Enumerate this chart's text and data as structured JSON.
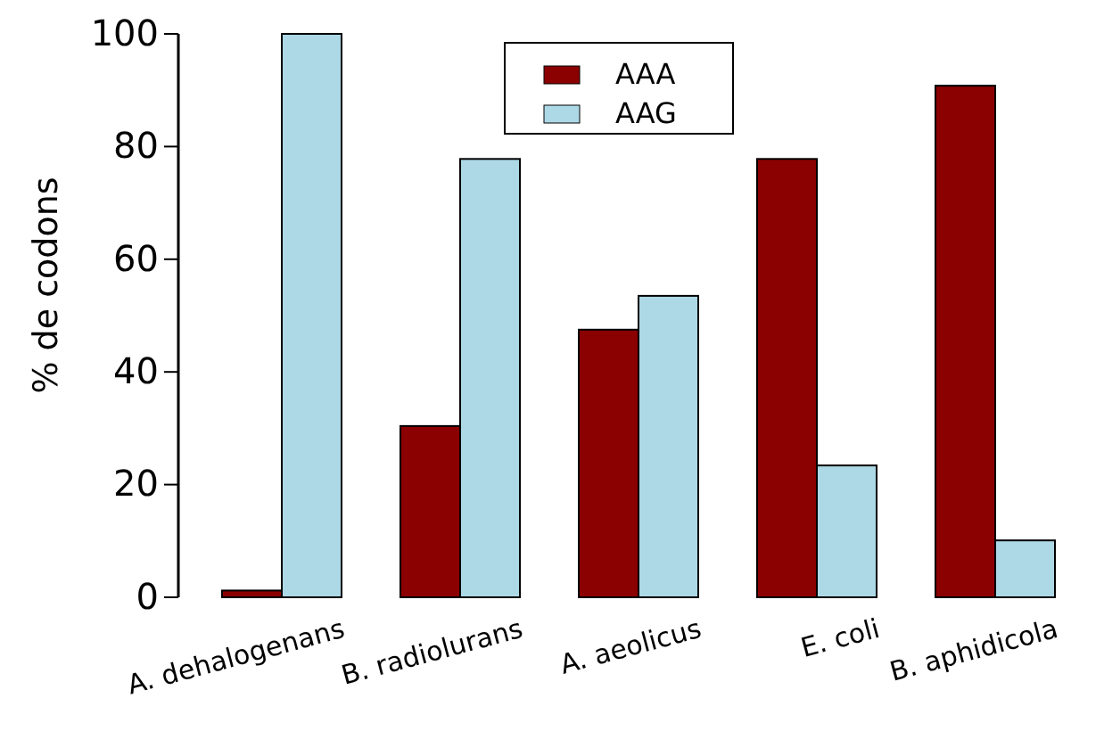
{
  "chart_data": {
    "type": "bar",
    "ylabel": "% de codons",
    "categories": [
      "A. dehalogenans",
      "B. radiolurans",
      "A. aeolicus",
      "E. coli",
      "B. aphidicola"
    ],
    "series": [
      {
        "name": "AAA",
        "color": "#8b0000",
        "values": [
          1.2,
          30.4,
          47.5,
          77.8,
          90.8
        ]
      },
      {
        "name": "AAG",
        "color": "#add8e6",
        "values": [
          100,
          77.8,
          53.5,
          23.4,
          10.1
        ]
      }
    ],
    "ylim": [
      0,
      100
    ],
    "yticks": [
      0,
      20,
      40,
      60,
      80,
      100
    ],
    "grid": false,
    "legend": "top"
  }
}
